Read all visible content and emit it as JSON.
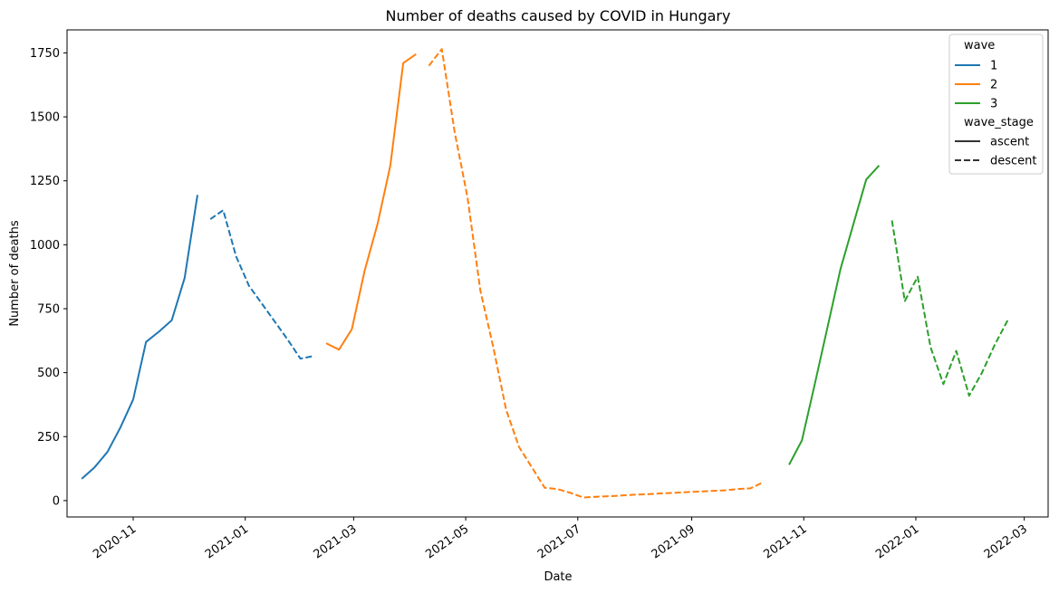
{
  "chart_data": {
    "type": "line",
    "title": "Number of deaths caused by COVID in Hungary",
    "xlabel": "Date",
    "ylabel": "Number of deaths",
    "xlim": [
      "2020-09-26",
      "2022-03-14"
    ],
    "ylim": [
      -64,
      1840
    ],
    "y_ticks": [
      0,
      250,
      500,
      750,
      1000,
      1250,
      1500,
      1750
    ],
    "x_ticks": [
      "2020-11",
      "2021-01",
      "2021-03",
      "2021-05",
      "2021-07",
      "2021-09",
      "2021-11",
      "2022-01",
      "2022-03"
    ],
    "grid": false,
    "legend": {
      "placement": "top-right",
      "hue_title": "wave",
      "style_title": "wave_stage",
      "hue_entries": [
        {
          "label": "1",
          "color": "#1f77b4"
        },
        {
          "label": "2",
          "color": "#ff7f0e"
        },
        {
          "label": "3",
          "color": "#2ca02c"
        }
      ],
      "style_entries": [
        {
          "label": "ascent",
          "dash": "solid"
        },
        {
          "label": "descent",
          "dash": "dashed"
        }
      ]
    },
    "series": [
      {
        "wave": "1",
        "wave_stage": "ascent",
        "color": "#1f77b4",
        "dash": "solid",
        "points": [
          [
            "2020-10-04",
            85
          ],
          [
            "2020-10-11",
            130
          ],
          [
            "2020-10-18",
            190
          ],
          [
            "2020-10-25",
            285
          ],
          [
            "2020-11-01",
            395
          ],
          [
            "2020-11-08",
            620
          ],
          [
            "2020-11-15",
            660
          ],
          [
            "2020-11-22",
            705
          ],
          [
            "2020-11-29",
            870
          ],
          [
            "2020-12-06",
            1195
          ]
        ]
      },
      {
        "wave": "1",
        "wave_stage": "descent",
        "color": "#1f77b4",
        "dash": "dashed",
        "points": [
          [
            "2020-12-13",
            1100
          ],
          [
            "2020-12-20",
            1135
          ],
          [
            "2020-12-27",
            955
          ],
          [
            "2021-01-03",
            840
          ],
          [
            "2021-01-10",
            770
          ],
          [
            "2021-01-17",
            700
          ],
          [
            "2021-01-24",
            630
          ],
          [
            "2021-01-31",
            555
          ],
          [
            "2021-02-07",
            565
          ]
        ]
      },
      {
        "wave": "2",
        "wave_stage": "ascent",
        "color": "#ff7f0e",
        "dash": "solid",
        "points": [
          [
            "2021-02-14",
            615
          ],
          [
            "2021-02-21",
            590
          ],
          [
            "2021-02-28",
            670
          ],
          [
            "2021-03-07",
            900
          ],
          [
            "2021-03-14",
            1080
          ],
          [
            "2021-03-21",
            1310
          ],
          [
            "2021-03-28",
            1710
          ],
          [
            "2021-04-04",
            1745
          ]
        ]
      },
      {
        "wave": "2",
        "wave_stage": "descent",
        "color": "#ff7f0e",
        "dash": "dashed",
        "points": [
          [
            "2021-04-11",
            1700
          ],
          [
            "2021-04-18",
            1765
          ],
          [
            "2021-04-25",
            1440
          ],
          [
            "2021-05-02",
            1185
          ],
          [
            "2021-05-09",
            820
          ],
          [
            "2021-05-16",
            600
          ],
          [
            "2021-05-23",
            355
          ],
          [
            "2021-05-30",
            210
          ],
          [
            "2021-06-06",
            130
          ],
          [
            "2021-06-13",
            50
          ],
          [
            "2021-06-20",
            45
          ],
          [
            "2021-06-27",
            30
          ],
          [
            "2021-07-04",
            12
          ],
          [
            "2021-07-11",
            15
          ],
          [
            "2021-07-18",
            17
          ],
          [
            "2021-07-25",
            20
          ],
          [
            "2021-08-01",
            23
          ],
          [
            "2021-08-08",
            25
          ],
          [
            "2021-08-15",
            28
          ],
          [
            "2021-08-22",
            30
          ],
          [
            "2021-08-29",
            33
          ],
          [
            "2021-09-05",
            35
          ],
          [
            "2021-09-12",
            38
          ],
          [
            "2021-09-19",
            40
          ],
          [
            "2021-09-26",
            45
          ],
          [
            "2021-10-03",
            48
          ],
          [
            "2021-10-10",
            72
          ]
        ]
      },
      {
        "wave": "3",
        "wave_stage": "ascent",
        "color": "#2ca02c",
        "dash": "solid",
        "points": [
          [
            "2021-10-24",
            140
          ],
          [
            "2021-10-31",
            235
          ],
          [
            "2021-11-07",
            455
          ],
          [
            "2021-11-14",
            680
          ],
          [
            "2021-11-21",
            905
          ],
          [
            "2021-11-28",
            1080
          ],
          [
            "2021-12-05",
            1255
          ],
          [
            "2021-12-12",
            1310
          ]
        ]
      },
      {
        "wave": "3",
        "wave_stage": "descent",
        "color": "#2ca02c",
        "dash": "dashed",
        "points": [
          [
            "2021-12-19",
            1095
          ],
          [
            "2021-12-26",
            780
          ],
          [
            "2022-01-02",
            875
          ],
          [
            "2022-01-09",
            600
          ],
          [
            "2022-01-16",
            455
          ],
          [
            "2022-01-23",
            585
          ],
          [
            "2022-01-30",
            410
          ],
          [
            "2022-02-06",
            500
          ],
          [
            "2022-02-13",
            610
          ],
          [
            "2022-02-20",
            705
          ]
        ]
      }
    ]
  }
}
